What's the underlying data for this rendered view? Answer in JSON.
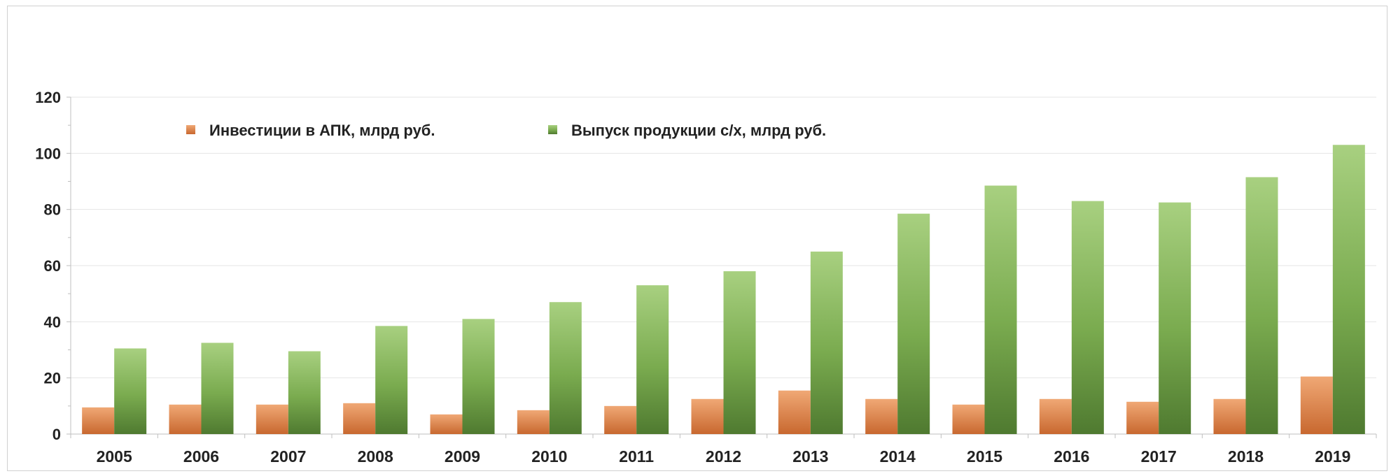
{
  "chart_data": {
    "type": "bar",
    "categories": [
      "2005",
      "2006",
      "2007",
      "2008",
      "2009",
      "2010",
      "2011",
      "2012",
      "2013",
      "2014",
      "2015",
      "2016",
      "2017",
      "2018",
      "2019"
    ],
    "series": [
      {
        "name": "Инвестиции в АПК, млрд руб.",
        "values": [
          9.5,
          10.5,
          10.5,
          11.0,
          7.0,
          8.5,
          10.0,
          12.5,
          15.5,
          12.5,
          10.5,
          12.5,
          11.5,
          12.5,
          20.5
        ],
        "color": "#e08a4e"
      },
      {
        "name": "Выпуск продукции с/х, млрд руб.",
        "values": [
          30.5,
          32.5,
          29.5,
          38.5,
          41.0,
          47.0,
          53.0,
          58.0,
          65.0,
          78.5,
          88.5,
          83.0,
          82.5,
          91.5,
          103.0
        ],
        "color": "#7aab4f"
      }
    ],
    "yticks": [
      0,
      20,
      40,
      60,
      80,
      100,
      120
    ],
    "ylim": [
      0,
      120
    ],
    "legend_position": "top-left",
    "title": "",
    "xlabel": "",
    "ylabel": ""
  }
}
